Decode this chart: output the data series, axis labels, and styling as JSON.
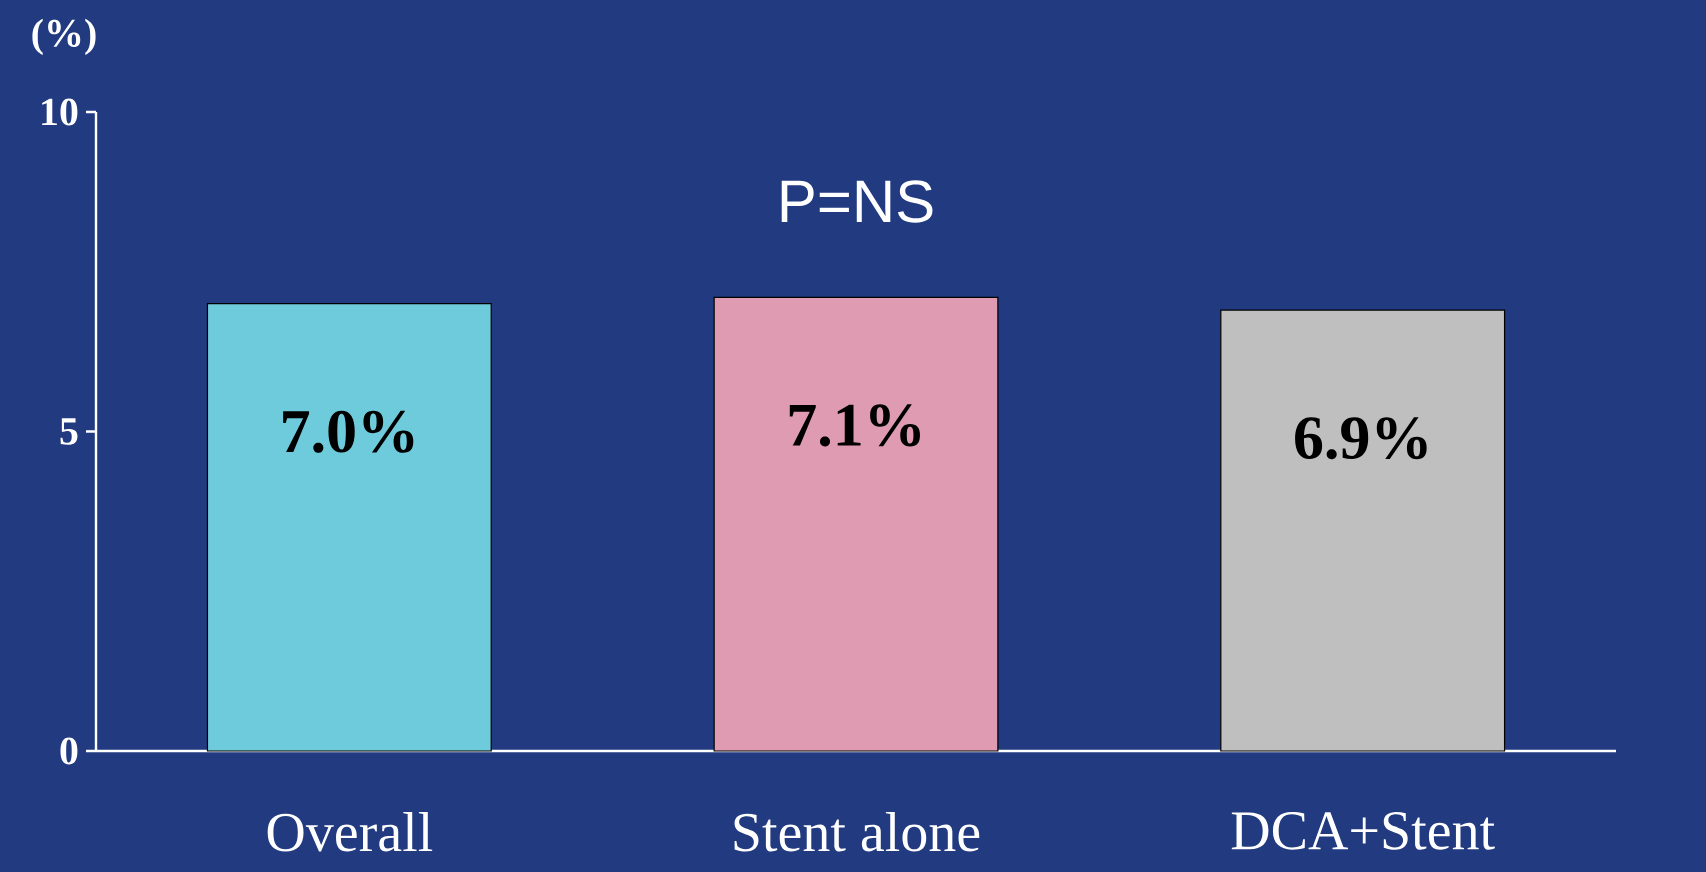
{
  "chart_data": {
    "type": "bar",
    "categories": [
      "Overall",
      "Stent alone",
      "DCA+Stent"
    ],
    "values": [
      7.0,
      7.1,
      6.9
    ],
    "colors": [
      "#6ecbdc",
      "#de9bb2",
      "#bfbfbf"
    ],
    "value_labels": [
      "7.0%",
      "7.1%",
      "6.9%"
    ],
    "ylabel": "(%)",
    "ylim": [
      0,
      10
    ],
    "yticks": [
      0,
      5,
      10
    ],
    "annotations": [
      "P=NS"
    ]
  }
}
